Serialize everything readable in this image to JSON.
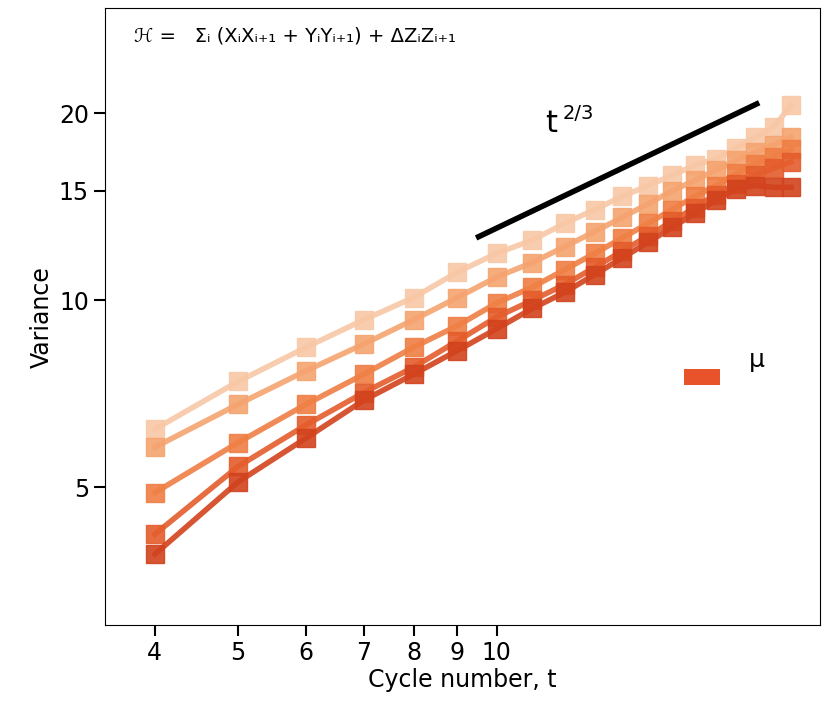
{
  "chart_data": {
    "type": "line",
    "title": "ℋ =   Σᵢ (XᵢXᵢ₊₁ + YᵢYᵢ₊₁) + ΔZᵢZᵢ₊₁",
    "x_label": "Cycle number, t",
    "y_label": "Variance",
    "log": true,
    "grid": false,
    "marker": "square",
    "line_style": "solid",
    "x": [
      4,
      5,
      6,
      7,
      8,
      9,
      10,
      11,
      12,
      13,
      14,
      15,
      16,
      17,
      18,
      19,
      20,
      21,
      22
    ],
    "series": [
      {
        "color": "#f8c8a6",
        "values": [
          6.2,
          7.4,
          8.4,
          9.3,
          10.1,
          11.1,
          11.9,
          12.5,
          13.3,
          14.0,
          14.7,
          15.3,
          15.9,
          16.5,
          16.9,
          17.6,
          18.3,
          19.0,
          20.6
        ]
      },
      {
        "color": "#f5a470",
        "values": [
          5.8,
          6.8,
          7.7,
          8.5,
          9.3,
          10.1,
          10.9,
          11.5,
          12.2,
          12.9,
          13.6,
          14.3,
          15.0,
          15.6,
          16.2,
          16.8,
          17.3,
          17.8,
          18.3
        ]
      },
      {
        "color": "#ef7f45",
        "values": [
          4.9,
          5.9,
          6.8,
          7.6,
          8.4,
          9.1,
          9.9,
          10.5,
          11.2,
          11.9,
          12.6,
          13.3,
          14.0,
          14.7,
          15.3,
          16.0,
          16.6,
          17.0,
          17.5
        ]
      },
      {
        "color": "#e45d2c",
        "values": [
          4.2,
          5.4,
          6.3,
          7.1,
          7.8,
          8.6,
          9.4,
          10.0,
          10.6,
          11.3,
          12.0,
          12.7,
          13.4,
          14.1,
          14.8,
          15.4,
          15.9,
          16.3,
          16.7
        ]
      },
      {
        "color": "#d2431e",
        "values": [
          3.9,
          5.1,
          6.0,
          6.9,
          7.6,
          8.3,
          9.0,
          9.7,
          10.3,
          11.0,
          11.7,
          12.4,
          13.1,
          13.8,
          14.5,
          15.1,
          15.3,
          15.2,
          15.2
        ]
      }
    ],
    "xlim": [
      3.5,
      23.8
    ],
    "xticks": [
      4,
      5,
      6,
      7,
      8,
      9,
      10
    ],
    "ylim": [
      3.0,
      29.5
    ],
    "yticks": [
      5,
      10,
      15,
      20
    ],
    "guide": {
      "text": "t",
      "exponent": "2/3",
      "color": "#000000",
      "x": [
        9.46,
        20.2
      ],
      "y": [
        12.6,
        20.8
      ]
    },
    "annotations": [
      {
        "text": "μ",
        "color": "#e8532b"
      }
    ]
  }
}
